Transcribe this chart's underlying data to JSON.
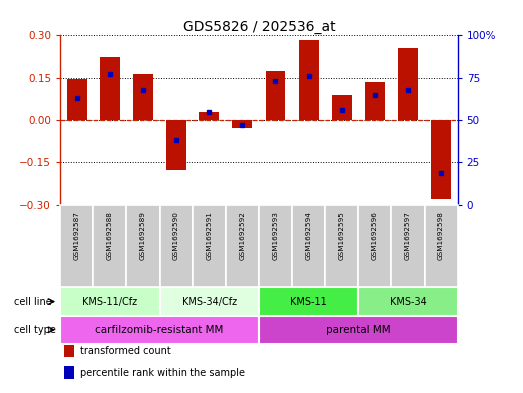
{
  "title": "GDS5826 / 202536_at",
  "samples": [
    "GSM1692587",
    "GSM1692588",
    "GSM1692589",
    "GSM1692590",
    "GSM1692591",
    "GSM1692592",
    "GSM1692593",
    "GSM1692594",
    "GSM1692595",
    "GSM1692596",
    "GSM1692597",
    "GSM1692598"
  ],
  "transformed_count": [
    0.145,
    0.225,
    0.162,
    -0.178,
    0.03,
    -0.03,
    0.172,
    0.285,
    0.09,
    0.135,
    0.255,
    -0.28
  ],
  "percentile_rank": [
    63,
    77,
    68,
    38,
    55,
    47,
    73,
    76,
    56,
    65,
    68,
    19
  ],
  "cell_lines": [
    {
      "label": "KMS-11/Cfz",
      "start": 0,
      "end": 3,
      "color": "#c8ffc8"
    },
    {
      "label": "KMS-34/Cfz",
      "start": 3,
      "end": 6,
      "color": "#e0ffe0"
    },
    {
      "label": "KMS-11",
      "start": 6,
      "end": 9,
      "color": "#44ee44"
    },
    {
      "label": "KMS-34",
      "start": 9,
      "end": 12,
      "color": "#88ee88"
    }
  ],
  "cell_types": [
    {
      "label": "carfilzomib-resistant MM",
      "start": 0,
      "end": 6,
      "color": "#ee66ee"
    },
    {
      "label": "parental MM",
      "start": 6,
      "end": 12,
      "color": "#cc44cc"
    }
  ],
  "ylim": [
    -0.3,
    0.3
  ],
  "y2lim": [
    0,
    100
  ],
  "y_ticks": [
    -0.3,
    -0.15,
    0,
    0.15,
    0.3
  ],
  "y2_ticks": [
    0,
    25,
    50,
    75,
    100
  ],
  "bar_color": "#bb1100",
  "dot_color": "#0000bb",
  "axis_color_left": "#cc2200",
  "axis_color_right": "#0000cc",
  "sample_bg": "#cccccc",
  "legend_items": [
    {
      "label": "transformed count",
      "color": "#bb1100"
    },
    {
      "label": "percentile rank within the sample",
      "color": "#0000bb"
    }
  ]
}
